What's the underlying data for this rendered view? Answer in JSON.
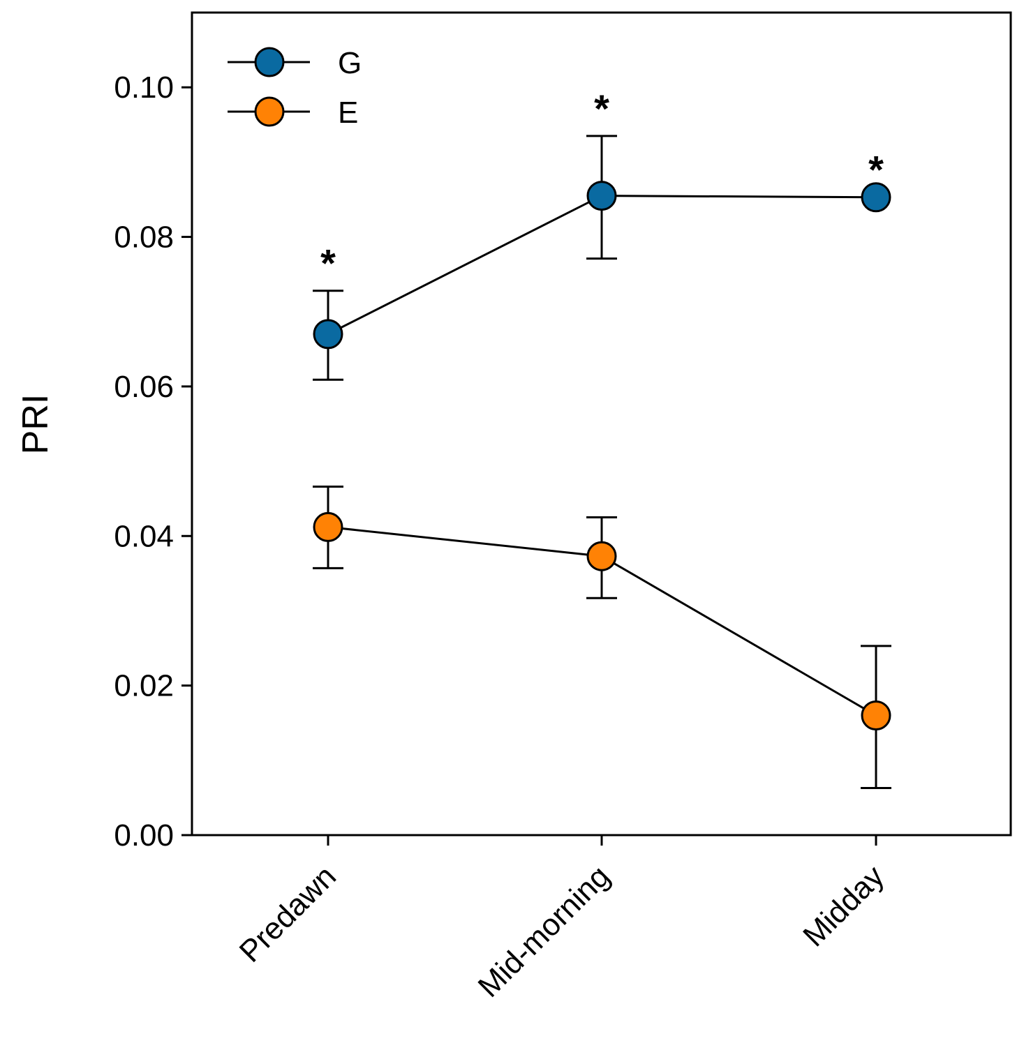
{
  "chart_data": {
    "type": "line",
    "title": "",
    "xlabel": "",
    "ylabel": "PRI",
    "categories": [
      "Predawn",
      "Mid-morning",
      "Midday"
    ],
    "ylim": [
      0.0,
      0.11
    ],
    "yticks": [
      "0.00",
      "0.02",
      "0.04",
      "0.06",
      "0.08",
      "0.10"
    ],
    "grid": false,
    "legend_position": "top-left",
    "series": [
      {
        "name": "G",
        "color": "#0a6aa1",
        "values": [
          0.067,
          0.0855,
          0.0853
        ],
        "err_upper": [
          0.0728,
          0.0935,
          0.0853
        ],
        "err_lower": [
          0.0609,
          0.0771,
          0.0853
        ],
        "significance": [
          "*",
          "*",
          "*"
        ]
      },
      {
        "name": "E",
        "color": "#ff8205",
        "values": [
          0.0412,
          0.0373,
          0.016
        ],
        "err_upper": [
          0.0466,
          0.0425,
          0.0253
        ],
        "err_lower": [
          0.0357,
          0.0317,
          0.0063
        ],
        "significance": [
          "",
          "",
          ""
        ]
      }
    ]
  }
}
